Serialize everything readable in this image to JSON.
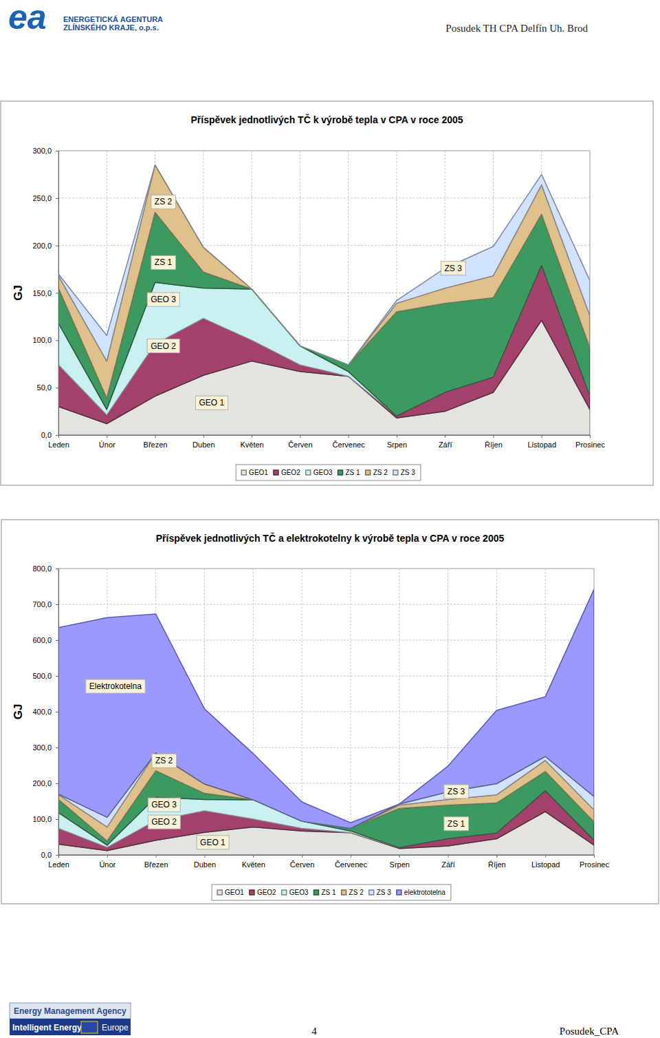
{
  "page": {
    "logo": "ea",
    "agency_lines": [
      "ENERGETICKÁ AGENTURA",
      "ZLÍNSKÉHO KRAJE, o.p.s."
    ],
    "header_right": "Posudek TH CPA Delfín Uh. Brod",
    "footer_lines": [
      "Energy Management Agency",
      "Intelligent Energy",
      "Europe"
    ],
    "page_number": "4",
    "footer_right": "Posudek_CPA"
  },
  "chart_data": [
    {
      "type": "area",
      "stacked": true,
      "grid": true,
      "legend": "bottom",
      "title": "Příspěvek jednotlivých TČ k výrobě tepla v CPA v roce 2005",
      "y_label": "GJ",
      "categories": [
        "Leden",
        "Únor",
        "Březen",
        "Duben",
        "Květen",
        "Červen",
        "Červenec",
        "Srpen",
        "Září",
        "Říjen",
        "Listopad",
        "Prosinec"
      ],
      "ylim": [
        0,
        300
      ],
      "yticks": [
        {
          "value": 0,
          "label": "0,0"
        },
        {
          "value": 50,
          "label": "50,0"
        },
        {
          "value": 100,
          "label": "100,0"
        },
        {
          "value": 150,
          "label": "150,0"
        },
        {
          "value": 200,
          "label": "200,0"
        },
        {
          "value": 250,
          "label": "250,0"
        },
        {
          "value": 300,
          "label": "300,0"
        }
      ],
      "series": [
        {
          "name": "GEO1",
          "color": "#e4e4de",
          "values": [
            30,
            12,
            41,
            63,
            78,
            67,
            62,
            18,
            25,
            45,
            121,
            27
          ]
        },
        {
          "name": "GEO2",
          "color": "#a3406c",
          "values": [
            44,
            9,
            55,
            60,
            22,
            7,
            0,
            2,
            20,
            16,
            58,
            14
          ]
        },
        {
          "name": "GEO3",
          "color": "#c8f0f0",
          "values": [
            44,
            6,
            65,
            32,
            54,
            20,
            5,
            0,
            0,
            0,
            0,
            0
          ]
        },
        {
          "name": "ZS 1",
          "color": "#3c9a60",
          "values": [
            37,
            12,
            74,
            17,
            0,
            0,
            7,
            110,
            94,
            84,
            54,
            51
          ]
        },
        {
          "name": "ZS 2",
          "color": "#dfbf8a",
          "values": [
            13,
            39,
            50,
            26,
            0,
            0,
            0,
            9,
            16,
            23,
            31,
            34
          ]
        },
        {
          "name": "ZS 3",
          "color": "#d0e2ff",
          "values": [
            2,
            27,
            0,
            0,
            0,
            0,
            0,
            3,
            21,
            31,
            11,
            37
          ]
        }
      ],
      "annotations": [
        {
          "text": "ZS 2",
          "x": "Březen",
          "y": 246
        },
        {
          "text": "ZS 1",
          "x": "Březen",
          "y": 182
        },
        {
          "text": "GEO 3",
          "x": "Březen",
          "y": 143
        },
        {
          "text": "GEO 2",
          "x": "Březen",
          "y": 94
        },
        {
          "text": "GEO 1",
          "x": "Duben",
          "y": 34
        },
        {
          "text": "ZS 3",
          "x": "Září",
          "y": 176
        }
      ]
    },
    {
      "type": "area",
      "stacked": true,
      "grid": true,
      "legend": "bottom",
      "title": "Příspěvek jednotlivých TČ a elektrokotelny k výrobě tepla v CPA v roce 2005",
      "y_label": "GJ",
      "categories": [
        "Leden",
        "Únor",
        "Březen",
        "Duben",
        "Květen",
        "Červen",
        "Červenec",
        "Srpen",
        "Září",
        "Říjen",
        "Listopad",
        "Prosinec"
      ],
      "ylim": [
        0,
        800
      ],
      "yticks": [
        {
          "value": 0,
          "label": "0,0"
        },
        {
          "value": 100,
          "label": "100,0"
        },
        {
          "value": 200,
          "label": "200,0"
        },
        {
          "value": 300,
          "label": "300,0"
        },
        {
          "value": 400,
          "label": "400,0"
        },
        {
          "value": 500,
          "label": "500,0"
        },
        {
          "value": 600,
          "label": "600,0"
        },
        {
          "value": 700,
          "label": "700,0"
        },
        {
          "value": 800,
          "label": "800,0"
        }
      ],
      "series": [
        {
          "name": "GEO1",
          "color": "#e4e4de",
          "values": [
            30,
            12,
            41,
            63,
            78,
            67,
            62,
            18,
            25,
            45,
            121,
            27
          ]
        },
        {
          "name": "GEO2",
          "color": "#a3406c",
          "values": [
            44,
            9,
            55,
            60,
            22,
            7,
            0,
            2,
            20,
            16,
            58,
            14
          ]
        },
        {
          "name": "GEO3",
          "color": "#c8f0f0",
          "values": [
            44,
            6,
            65,
            32,
            54,
            20,
            5,
            0,
            0,
            0,
            0,
            0
          ]
        },
        {
          "name": "ZS 1",
          "color": "#3c9a60",
          "values": [
            37,
            12,
            74,
            17,
            0,
            0,
            7,
            110,
            94,
            84,
            54,
            51
          ]
        },
        {
          "name": "ZS 2",
          "color": "#dfbf8a",
          "values": [
            13,
            39,
            50,
            26,
            0,
            0,
            0,
            9,
            16,
            23,
            31,
            34
          ]
        },
        {
          "name": "ZS 3",
          "color": "#d0e2ff",
          "values": [
            2,
            27,
            0,
            0,
            0,
            0,
            0,
            3,
            21,
            31,
            11,
            37
          ]
        },
        {
          "name": "elektrototelna",
          "color": "#9999ff",
          "values": [
            465,
            558,
            388,
            210,
            129,
            54,
            16,
            0,
            72,
            205,
            167,
            579
          ]
        }
      ],
      "annotations": [
        {
          "text": "Elektrokotelna",
          "x": "Únor",
          "y": 471
        },
        {
          "text": "ZS 2",
          "x": "Březen",
          "y": 263
        },
        {
          "text": "GEO 3",
          "x": "Březen",
          "y": 140
        },
        {
          "text": "GEO 2",
          "x": "Březen",
          "y": 92
        },
        {
          "text": "GEO 1",
          "x": "Duben",
          "y": 35
        },
        {
          "text": "ZS 3",
          "x": "Září",
          "y": 177
        },
        {
          "text": "ZS 1",
          "x": "Září",
          "y": 87
        }
      ]
    }
  ]
}
